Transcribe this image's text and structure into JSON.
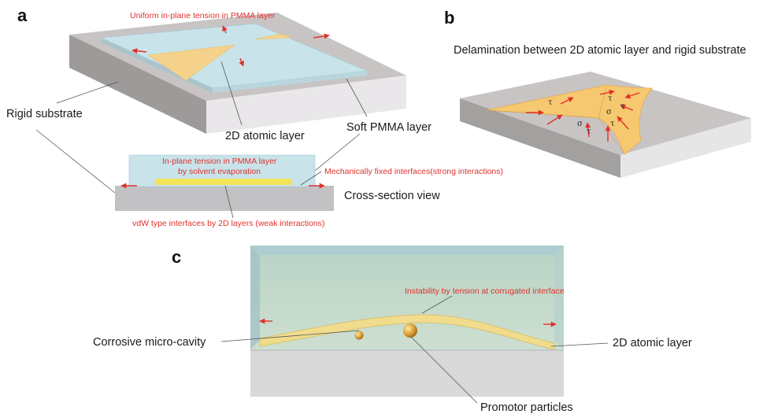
{
  "panels": {
    "a": "a",
    "b": "b",
    "c": "c"
  },
  "panel_a": {
    "top_note": "Uniform in-plane tension in PMMA layer",
    "rigid_substrate": "Rigid substrate",
    "atomic_layer": "2D atomic layer",
    "pmma_layer": "Soft PMMA layer",
    "cross_section_note_line1": "In-plane tension in PMMA layer",
    "cross_section_note_line2": "by solvent evaporation",
    "fixed_interfaces": "Mechanically fixed interfaces(strong interactions)",
    "cross_section_view": "Cross-section view",
    "vdw_interfaces": "vdW type interfaces by 2D layers (weak interactions)"
  },
  "panel_b": {
    "title": "Delamination between 2D atomic layer and rigid substrate",
    "tau": "τ",
    "sigma": "σ"
  },
  "panel_c": {
    "instability_note": "Instability by tension at corrugated interface",
    "micro_cavity": "Corrosive micro-cavity",
    "atomic_layer": "2D atomic layer",
    "promotor_particles": "Promotor particles"
  },
  "colors": {
    "substrate_top": "#c9c4c4",
    "substrate_front": "#e9e7e9",
    "substrate_side": "#9e9a9a",
    "pmma": "#c8e4ea",
    "atomic_layer": "#f5d28c",
    "cross_section_layer": "#f4e35a",
    "annotation_red": "#e0312b"
  }
}
